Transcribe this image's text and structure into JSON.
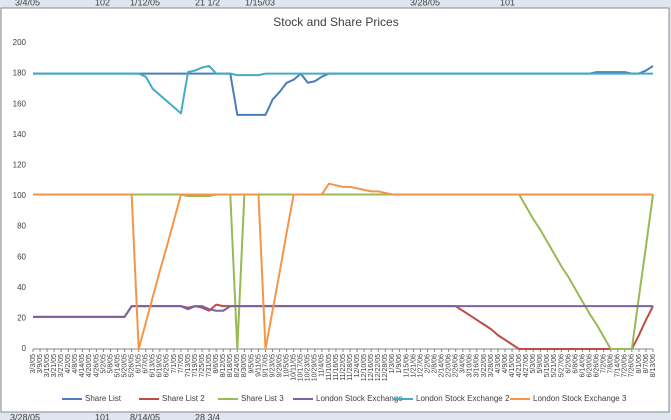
{
  "background_cells": {
    "top": [
      "3/4/05",
      "102",
      "1/12/05",
      "21 1/2",
      "1/15/03",
      "3/28/05",
      "101"
    ],
    "bottom": [
      "3/28/05",
      "101",
      "8/14/05",
      "28 3/4"
    ]
  },
  "chart_data": {
    "type": "line",
    "title": "Stock and Share Prices",
    "categories": [
      "3/3/05",
      "3/9/05",
      "3/15/05",
      "3/21/05",
      "3/27/05",
      "4/2/05",
      "4/8/05",
      "4/14/05",
      "4/20/05",
      "4/26/05",
      "5/2/05",
      "5/8/05",
      "5/14/05",
      "5/20/05",
      "5/26/05",
      "6/1/05",
      "6/7/05",
      "6/13/05",
      "6/19/05",
      "6/25/05",
      "7/1/05",
      "7/7/05",
      "7/13/05",
      "7/19/05",
      "7/25/05",
      "7/31/05",
      "8/6/05",
      "8/12/05",
      "8/18/05",
      "8/24/05",
      "8/30/05",
      "9/5/05",
      "9/11/05",
      "9/17/05",
      "9/23/05",
      "9/29/05",
      "10/5/05",
      "10/11/05",
      "10/17/05",
      "10/23/05",
      "10/29/05",
      "11/4/05",
      "11/10/05",
      "11/16/05",
      "11/22/05",
      "11/28/05",
      "12/4/05",
      "12/10/05",
      "12/16/05",
      "12/22/05",
      "12/28/05",
      "1/3/06",
      "1/9/06",
      "1/15/06",
      "1/21/06",
      "1/27/06",
      "2/2/06",
      "2/8/06",
      "2/14/06",
      "2/20/06",
      "2/26/06",
      "3/4/06",
      "3/10/06",
      "3/16/06",
      "3/22/06",
      "3/28/06",
      "4/3/06",
      "4/9/06",
      "4/15/06",
      "4/21/06",
      "4/27/06",
      "5/3/06",
      "5/9/06",
      "5/15/06",
      "5/21/06",
      "5/27/06",
      "6/2/06",
      "6/8/06",
      "6/14/06",
      "6/20/06",
      "6/26/06",
      "7/2/06",
      "7/8/06",
      "7/14/06",
      "7/20/06",
      "7/26/06",
      "8/1/06",
      "8/7/06",
      "8/13/06"
    ],
    "series": [
      {
        "name": "Share List",
        "color": "#4a7ebb",
        "values": [
          180,
          180,
          180,
          180,
          180,
          180,
          180,
          180,
          180,
          180,
          180,
          180,
          180,
          180,
          180,
          180,
          180,
          180,
          180,
          180,
          180,
          180,
          180,
          180,
          180,
          180,
          180,
          180,
          180,
          153,
          153,
          153,
          153,
          153,
          163,
          168,
          174,
          176,
          180,
          174,
          175,
          178,
          180,
          180,
          180,
          180,
          180,
          180,
          180,
          180,
          180,
          180,
          180,
          180,
          180,
          180,
          180,
          180,
          180,
          180,
          180,
          180,
          180,
          180,
          180,
          180,
          180,
          180,
          180,
          180,
          180,
          180,
          180,
          180,
          180,
          180,
          180,
          180,
          180,
          180,
          181,
          181,
          181,
          181,
          181,
          180,
          180,
          182,
          185
        ]
      },
      {
        "name": "Share List 2",
        "color": "#be4b48",
        "values": [
          21,
          21,
          21,
          21,
          21,
          21,
          21,
          21,
          21,
          21,
          21,
          21,
          21,
          21,
          28,
          28,
          28,
          28,
          28,
          28,
          28,
          28,
          27,
          28,
          27,
          25,
          29,
          28,
          28,
          28,
          28,
          28,
          28,
          28,
          28,
          28,
          28,
          28,
          28,
          28,
          28,
          28,
          28,
          28,
          28,
          28,
          28,
          28,
          28,
          28,
          28,
          28,
          28,
          28,
          28,
          28,
          28,
          28,
          28,
          28,
          28,
          25,
          22,
          19,
          16,
          13,
          9,
          6,
          3,
          0,
          0,
          0,
          0,
          0,
          0,
          0,
          0,
          0,
          0,
          0,
          0,
          0,
          0,
          0,
          0,
          0,
          9,
          19,
          28
        ]
      },
      {
        "name": "Share List 3",
        "color": "#98b954",
        "values": [
          101,
          101,
          101,
          101,
          101,
          101,
          101,
          101,
          101,
          101,
          101,
          101,
          101,
          101,
          101,
          101,
          101,
          101,
          101,
          101,
          101,
          101,
          100,
          100,
          100,
          100,
          101,
          101,
          101,
          0,
          101,
          101,
          101,
          101,
          101,
          101,
          101,
          101,
          101,
          101,
          101,
          101,
          101,
          101,
          101,
          101,
          101,
          101,
          101,
          101,
          101,
          101,
          101,
          101,
          101,
          101,
          101,
          101,
          101,
          101,
          101,
          101,
          101,
          101,
          101,
          101,
          101,
          101,
          101,
          101,
          93,
          85,
          78,
          70,
          62,
          54,
          47,
          39,
          31,
          23,
          16,
          8,
          0,
          0,
          0,
          0,
          34,
          67,
          101
        ]
      },
      {
        "name": "London Stock Exchange",
        "color": "#7d60a0",
        "values": [
          21,
          21,
          21,
          21,
          21,
          21,
          21,
          21,
          21,
          21,
          21,
          21,
          21,
          21,
          28,
          28,
          28,
          28,
          28,
          28,
          28,
          28,
          26,
          28,
          28,
          26,
          25,
          25,
          28,
          28,
          28,
          28,
          28,
          28,
          28,
          28,
          28,
          28,
          28,
          28,
          28,
          28,
          28,
          28,
          28,
          28,
          28,
          28,
          28,
          28,
          28,
          28,
          28,
          28,
          28,
          28,
          28,
          28,
          28,
          28,
          28,
          28,
          28,
          28,
          28,
          28,
          28,
          28,
          28,
          28,
          28,
          28,
          28,
          28,
          28,
          28,
          28,
          28,
          28,
          28,
          28,
          28,
          28,
          28,
          28,
          28,
          28,
          28,
          28
        ]
      },
      {
        "name": "London Stock Exchange 2",
        "color": "#46aac5",
        "values": [
          180,
          180,
          180,
          180,
          180,
          180,
          180,
          180,
          180,
          180,
          180,
          180,
          180,
          180,
          180,
          180,
          178,
          170,
          166,
          162,
          158,
          154,
          181,
          182,
          184,
          185,
          180,
          180,
          180,
          179,
          179,
          179,
          179,
          180,
          180,
          180,
          180,
          180,
          180,
          180,
          180,
          180,
          180,
          180,
          180,
          180,
          180,
          180,
          180,
          180,
          180,
          180,
          180,
          180,
          180,
          180,
          180,
          180,
          180,
          180,
          180,
          180,
          180,
          180,
          180,
          180,
          180,
          180,
          180,
          180,
          180,
          180,
          180,
          180,
          180,
          180,
          180,
          180,
          180,
          180,
          180,
          180,
          180,
          180,
          180,
          180,
          180,
          180,
          180
        ]
      },
      {
        "name": "London Stock Exchange 3",
        "color": "#f69546",
        "values": [
          101,
          101,
          101,
          101,
          101,
          101,
          101,
          101,
          101,
          101,
          101,
          101,
          101,
          101,
          101,
          0,
          17,
          34,
          51,
          67,
          84,
          101,
          101,
          101,
          101,
          101,
          101,
          101,
          101,
          101,
          101,
          101,
          101,
          0,
          25,
          50,
          76,
          101,
          101,
          101,
          101,
          101,
          108,
          107,
          106,
          106,
          105,
          104,
          103,
          103,
          102,
          101,
          101,
          101,
          101,
          101,
          101,
          101,
          101,
          101,
          101,
          101,
          101,
          101,
          101,
          101,
          101,
          101,
          101,
          101,
          101,
          101,
          101,
          101,
          101,
          101,
          101,
          101,
          101,
          101,
          101,
          101,
          101,
          101,
          101,
          101,
          101,
          101,
          101
        ]
      }
    ],
    "ylim": [
      0,
      200
    ],
    "yticks": [
      0,
      20,
      40,
      60,
      80,
      100,
      120,
      140,
      160,
      180,
      200
    ],
    "grid": false,
    "legend": "bottom"
  }
}
